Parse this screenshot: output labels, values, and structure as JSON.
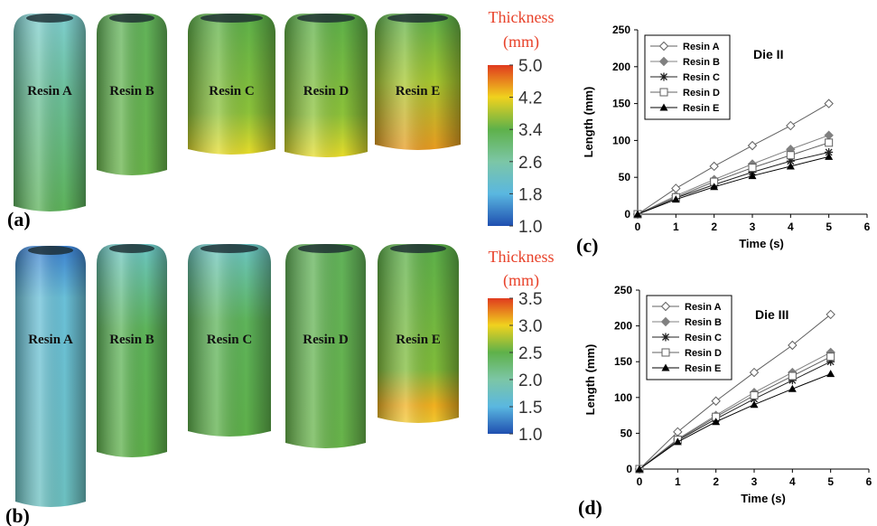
{
  "panels": [
    {
      "label": "(a)",
      "resins": [
        "Resin A",
        "Resin B",
        "Resin C",
        "Resin D",
        "Resin E"
      ],
      "colorbar": {
        "title": "Thickness",
        "unit": "(mm)",
        "lim": [
          1.0,
          5.0
        ],
        "ticks": [
          {
            "value": 1,
            "label": "1.0"
          },
          {
            "value": 1.8,
            "label": "1.8"
          },
          {
            "value": 2.6,
            "label": "2.6"
          },
          {
            "value": 3.4,
            "label": "3.4"
          },
          {
            "value": 4.2,
            "label": "4.2"
          },
          {
            "value": 5,
            "label": "5.0"
          }
        ]
      }
    },
    {
      "label": "(b)",
      "resins": [
        "Resin A",
        "Resin B",
        "Resin C",
        "Resin D",
        "Resin E"
      ],
      "colorbar": {
        "title": "Thickness",
        "unit": "(mm)",
        "lim": [
          1.0,
          3.5
        ],
        "ticks": [
          {
            "value": 1,
            "label": "1.0"
          },
          {
            "value": 1.5,
            "label": "1.5"
          },
          {
            "value": 2,
            "label": "2.0"
          },
          {
            "value": 2.5,
            "label": "2.5"
          },
          {
            "value": 3,
            "label": "3.0"
          },
          {
            "value": 3.5,
            "label": "3.5"
          }
        ]
      }
    }
  ],
  "chart_data": [
    {
      "type": "line",
      "panel_label": "(c)",
      "annotation": "Die II",
      "x_label": "Time (s)",
      "y_label": "Length (mm)",
      "x": [
        0,
        1,
        2,
        3,
        4,
        5
      ],
      "xlim": [
        0,
        6
      ],
      "xticks": [
        0,
        1,
        2,
        3,
        4,
        5,
        6
      ],
      "ylim": [
        0,
        250
      ],
      "yticks": [
        0,
        50,
        100,
        150,
        200,
        250
      ],
      "legend": "upper-left",
      "series": [
        {
          "name": "Resin A",
          "color": "#606060",
          "marker": "diamond-open",
          "values": [
            0,
            35,
            65,
            93,
            120,
            150
          ]
        },
        {
          "name": "Resin B",
          "color": "#808080",
          "marker": "diamond",
          "values": [
            0,
            25,
            47,
            68,
            88,
            107
          ]
        },
        {
          "name": "Resin C",
          "color": "#202020",
          "marker": "asterisk",
          "values": [
            0,
            22,
            40,
            57,
            72,
            84
          ]
        },
        {
          "name": "Resin D",
          "color": "#606060",
          "marker": "square-open",
          "values": [
            0,
            23,
            44,
            63,
            80,
            97
          ]
        },
        {
          "name": "Resin E",
          "color": "#000000",
          "marker": "triangle",
          "values": [
            0,
            20,
            37,
            52,
            65,
            78
          ]
        }
      ]
    },
    {
      "type": "line",
      "panel_label": "(d)",
      "annotation": "Die III",
      "x_label": "Time (s)",
      "y_label": "Length (mm)",
      "x": [
        0,
        1,
        2,
        3,
        4,
        5
      ],
      "xlim": [
        0,
        6
      ],
      "xticks": [
        0,
        1,
        2,
        3,
        4,
        5,
        6
      ],
      "ylim": [
        0,
        250
      ],
      "yticks": [
        0,
        50,
        100,
        150,
        200,
        250
      ],
      "legend": "upper-left",
      "series": [
        {
          "name": "Resin A",
          "color": "#606060",
          "marker": "diamond-open",
          "values": [
            0,
            52,
            95,
            135,
            173,
            216
          ]
        },
        {
          "name": "Resin B",
          "color": "#808080",
          "marker": "diamond",
          "values": [
            0,
            42,
            75,
            107,
            135,
            163
          ]
        },
        {
          "name": "Resin C",
          "color": "#202020",
          "marker": "asterisk",
          "values": [
            0,
            40,
            70,
            98,
            124,
            150
          ]
        },
        {
          "name": "Resin D",
          "color": "#606060",
          "marker": "square-open",
          "values": [
            0,
            41,
            73,
            103,
            130,
            157
          ]
        },
        {
          "name": "Resin E",
          "color": "#000000",
          "marker": "triangle",
          "values": [
            0,
            38,
            66,
            90,
            112,
            133
          ]
        }
      ]
    }
  ]
}
